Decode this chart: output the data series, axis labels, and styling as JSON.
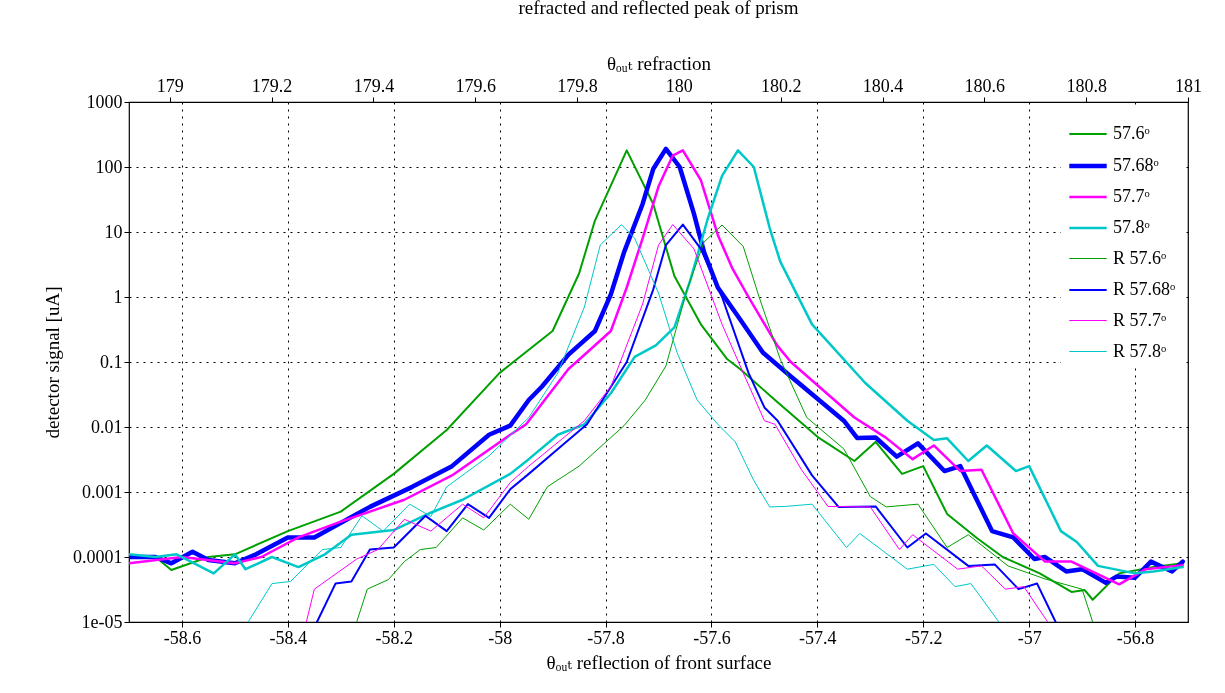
{
  "chart_data": {
    "type": "line",
    "title": "refracted and reflected peak of prism",
    "xlabel": "θₒᵤₜ reflection of front surface",
    "x2label": "θₒᵤₜ refraction",
    "ylabel": "detector signal [uA]",
    "xlim": [
      -58.7,
      -56.7
    ],
    "xticks": [
      -58.6,
      -58.4,
      -58.2,
      -58,
      -57.8,
      -57.6,
      -57.4,
      -57.2,
      -57,
      -56.8
    ],
    "x2lim": [
      178.92,
      181
    ],
    "x2ticks": [
      179,
      179.2,
      179.4,
      179.6,
      179.8,
      180,
      180.2,
      180.4,
      180.6,
      180.8,
      181
    ],
    "ylim": [
      1e-05,
      1000
    ],
    "yticks": [
      {
        "value": 1e-05,
        "label": "1e-05"
      },
      0.0001,
      0.001,
      0.01,
      0.1,
      1,
      10,
      100,
      1000
    ],
    "log": "y",
    "grid": true,
    "legend": "top right",
    "line_style": "solid",
    "series": [
      {
        "name": "57.6ᵒ",
        "color": "#00a000",
        "x": [
          -58.7,
          -58.65,
          -58.62,
          -58.55,
          -58.5,
          -58.4,
          -58.3,
          -58.2,
          -58.1,
          -58.0,
          -57.9,
          -57.85,
          -57.82,
          -57.76,
          -57.71,
          -57.67,
          -57.62,
          -57.57,
          -57.546,
          -57.48,
          -57.397,
          -57.33,
          -57.29,
          -57.24,
          -57.2,
          -57.155,
          -57.1,
          -57.05,
          -56.98,
          -56.92,
          -56.895,
          -56.88,
          -56.83,
          -56.765,
          -56.71
        ],
        "values": [
          0.0001,
          0.0001,
          6.3e-05,
          0.0001,
          0.00011,
          0.00025,
          0.0005,
          0.0019,
          0.009,
          0.068,
          0.3,
          2.3,
          15,
          180,
          27,
          2.1,
          0.38,
          0.11,
          0.078,
          0.026,
          0.0068,
          0.003,
          0.0059,
          0.0019,
          0.0025,
          0.00046,
          0.0002,
          0.0001,
          5.6e-05,
          2.9e-05,
          3.1e-05,
          2.2e-05,
          5.6e-05,
          7e-05,
          8e-05
        ]
      },
      {
        "name": "57.68ᵒ",
        "color": "#0000ff",
        "x": [
          -58.7,
          -58.65,
          -58.62,
          -58.58,
          -58.55,
          -58.5,
          -58.46,
          -58.4,
          -58.35,
          -58.245,
          -58.165,
          -58.09,
          -58.02,
          -57.98,
          -57.945,
          -57.92,
          -57.87,
          -57.82,
          -57.79,
          -57.765,
          -57.73,
          -57.71,
          -57.686,
          -57.66,
          -57.633,
          -57.614,
          -57.588,
          -57.548,
          -57.503,
          -57.45,
          -57.35,
          -57.325,
          -57.29,
          -57.25,
          -57.21,
          -57.16,
          -57.13,
          -57.07,
          -57.03,
          -56.99,
          -56.97,
          -56.93,
          -56.9,
          -56.855,
          -56.835,
          -56.8,
          -56.77,
          -56.73,
          -56.71
        ],
        "values": [
          0.0001,
          0.0001,
          8e-05,
          0.00012,
          9e-05,
          8e-05,
          0.00011,
          0.0002,
          0.0002,
          0.00059,
          0.0012,
          0.0025,
          0.0076,
          0.0105,
          0.026,
          0.042,
          0.13,
          0.3,
          1.1,
          4.9,
          27,
          93,
          190,
          100,
          19,
          4.9,
          1.4,
          0.48,
          0.14,
          0.06,
          0.0125,
          0.0068,
          0.0069,
          0.0035,
          0.0056,
          0.0021,
          0.0025,
          0.00025,
          0.0002,
          9.3e-05,
          0.0001,
          6e-05,
          6.5e-05,
          4e-05,
          5e-05,
          4.8e-05,
          8.5e-05,
          6e-05,
          8.5e-05
        ]
      },
      {
        "name": "57.7ᵒ",
        "color": "#ff00ff",
        "x": [
          -58.7,
          -58.6,
          -58.5,
          -58.45,
          -58.38,
          -58.3,
          -58.18,
          -58.09,
          -57.98,
          -57.95,
          -57.87,
          -57.835,
          -57.79,
          -57.76,
          -57.73,
          -57.7,
          -57.673,
          -57.654,
          -57.62,
          -57.588,
          -57.56,
          -57.53,
          -57.476,
          -57.45,
          -57.33,
          -57.27,
          -57.22,
          -57.18,
          -57.13,
          -57.09,
          -57.03,
          -56.97,
          -56.92,
          -56.83,
          -56.78,
          -56.71
        ],
        "values": [
          8e-05,
          0.0001,
          8e-05,
          0.0001,
          0.0002,
          0.00035,
          0.00076,
          0.0018,
          0.0076,
          0.011,
          0.078,
          0.14,
          0.3,
          1.4,
          8,
          50,
          150,
          180,
          63,
          9,
          2.7,
          1.0,
          0.18,
          0.1,
          0.014,
          0.0068,
          0.0032,
          0.0052,
          0.0021,
          0.0022,
          0.00023,
          8.5e-05,
          8.5e-05,
          3.8e-05,
          6.5e-05,
          7.5e-05
        ]
      },
      {
        "name": "57.8ᵒ",
        "color": "#00c8c8",
        "x": [
          -58.7,
          -58.65,
          -58.61,
          -58.54,
          -58.5,
          -58.48,
          -58.43,
          -58.38,
          -58.33,
          -58.28,
          -58.2,
          -58.13,
          -58.07,
          -57.98,
          -57.945,
          -57.89,
          -57.84,
          -57.79,
          -57.745,
          -57.705,
          -57.67,
          -57.64,
          -57.607,
          -57.58,
          -57.55,
          -57.52,
          -57.49,
          -57.47,
          -57.41,
          -57.31,
          -57.23,
          -57.18,
          -57.155,
          -57.115,
          -57.08,
          -57.025,
          -57,
          -56.94,
          -56.91,
          -56.87,
          -56.8,
          -56.765,
          -56.71
        ],
        "values": [
          0.00011,
          0.0001,
          0.00011,
          5.6e-05,
          0.00011,
          6.5e-05,
          0.0001,
          7e-05,
          0.00011,
          0.00022,
          0.00026,
          0.00048,
          0.00076,
          0.0019,
          0.0032,
          0.0076,
          0.011,
          0.033,
          0.12,
          0.18,
          0.34,
          1.8,
          16,
          73,
          180,
          100,
          11.5,
          3.5,
          0.38,
          0.048,
          0.0125,
          0.0063,
          0.0067,
          0.003,
          0.0052,
          0.0021,
          0.0025,
          0.00025,
          0.00017,
          7.3e-05,
          5.6e-05,
          6e-05,
          7e-05
        ]
      },
      {
        "name": "R 57.6ᵒ",
        "color": "#00a000",
        "x": [
          -58.27,
          -58.25,
          -58.21,
          -58.18,
          -58.15,
          -58.12,
          -58.07,
          -58.03,
          -57.98,
          -57.945,
          -57.91,
          -57.85,
          -57.765,
          -57.725,
          -57.686,
          -57.646,
          -57.614,
          -57.58,
          -57.54,
          -57.51,
          -57.47,
          -57.42,
          -57.35,
          -57.3,
          -57.27,
          -57.21,
          -57.155,
          -57.115,
          -57.04,
          -56.97,
          -56.9,
          -56.88
        ],
        "values": [
          1e-05,
          3.2e-05,
          4.5e-05,
          8.5e-05,
          0.00013,
          0.00014,
          0.0004,
          0.00026,
          0.00065,
          0.00038,
          0.0012,
          0.0025,
          0.0105,
          0.026,
          0.087,
          1.3,
          7,
          12.8,
          6,
          1.0,
          0.11,
          0.014,
          0.0046,
          0.00085,
          0.00059,
          0.00065,
          0.00014,
          0.00022,
          7.3e-05,
          4.6e-05,
          3.2e-05,
          1e-05
        ]
      },
      {
        "name": "R 57.68ᵒ",
        "color": "#0000ff",
        "x": [
          -58.345,
          -58.31,
          -58.28,
          -58.245,
          -58.2,
          -58.14,
          -58.1,
          -58.06,
          -58.02,
          -57.98,
          -57.945,
          -57.89,
          -57.835,
          -57.76,
          -57.71,
          -57.686,
          -57.654,
          -57.62,
          -57.58,
          -57.53,
          -57.5,
          -57.475,
          -57.41,
          -57.36,
          -57.29,
          -57.23,
          -57.195,
          -57.115,
          -57.065,
          -57.02,
          -56.985,
          -56.95
        ],
        "values": [
          1e-05,
          3.9e-05,
          4.2e-05,
          0.00013,
          0.00014,
          0.00043,
          0.00025,
          0.00065,
          0.0004,
          0.0011,
          0.0019,
          0.0046,
          0.011,
          0.1,
          1.3,
          6.3,
          13,
          5.5,
          1.0,
          0.068,
          0.02,
          0.0125,
          0.0018,
          0.00059,
          0.0006,
          0.00014,
          0.00023,
          7.3e-05,
          7.7e-05,
          3.2e-05,
          3.9e-05,
          1e-05
        ]
      },
      {
        "name": "R 57.7ᵒ",
        "color": "#ff00ff",
        "x": [
          -58.365,
          -58.35,
          -58.27,
          -58.23,
          -58.18,
          -58.13,
          -58.07,
          -58.03,
          -57.98,
          -57.945,
          -57.84,
          -57.79,
          -57.73,
          -57.7,
          -57.673,
          -57.633,
          -57.58,
          -57.54,
          -57.5,
          -57.48,
          -57.43,
          -57.38,
          -57.3,
          -57.245,
          -57.22,
          -57.135,
          -57.09,
          -57.045,
          -57.01,
          -56.965
        ],
        "values": [
          1e-05,
          3.2e-05,
          9.3e-05,
          0.00013,
          0.00038,
          0.00025,
          0.00065,
          0.0004,
          0.0014,
          0.0025,
          0.0125,
          0.042,
          0.78,
          6.3,
          13,
          5.5,
          0.38,
          0.068,
          0.0125,
          0.011,
          0.0022,
          0.0006,
          0.00059,
          0.00013,
          0.00022,
          6.5e-05,
          7.3e-05,
          3.2e-05,
          3.5e-05,
          1e-05
        ]
      },
      {
        "name": "R 57.8ᵒ",
        "color": "#00c8c8",
        "x": [
          -58.475,
          -58.43,
          -58.395,
          -58.335,
          -58.3,
          -58.26,
          -58.22,
          -58.17,
          -58.13,
          -58.1,
          -58.02,
          -57.945,
          -57.89,
          -57.84,
          -57.81,
          -57.77,
          -57.745,
          -57.7,
          -57.665,
          -57.627,
          -57.588,
          -57.555,
          -57.52,
          -57.49,
          -57.46,
          -57.41,
          -57.345,
          -57.32,
          -57.23,
          -57.18,
          -57.14,
          -57.11,
          -57.057
        ],
        "values": [
          1e-05,
          3.9e-05,
          4.2e-05,
          0.00013,
          0.00014,
          0.00043,
          0.00025,
          0.00065,
          0.00042,
          0.0012,
          0.0036,
          0.014,
          0.068,
          0.7,
          6.3,
          13,
          8,
          1.15,
          0.14,
          0.026,
          0.011,
          0.0059,
          0.0015,
          0.00059,
          0.0006,
          0.00065,
          0.00014,
          0.00023,
          6.5e-05,
          7.7e-05,
          3.5e-05,
          3.9e-05,
          1e-05
        ]
      }
    ]
  }
}
